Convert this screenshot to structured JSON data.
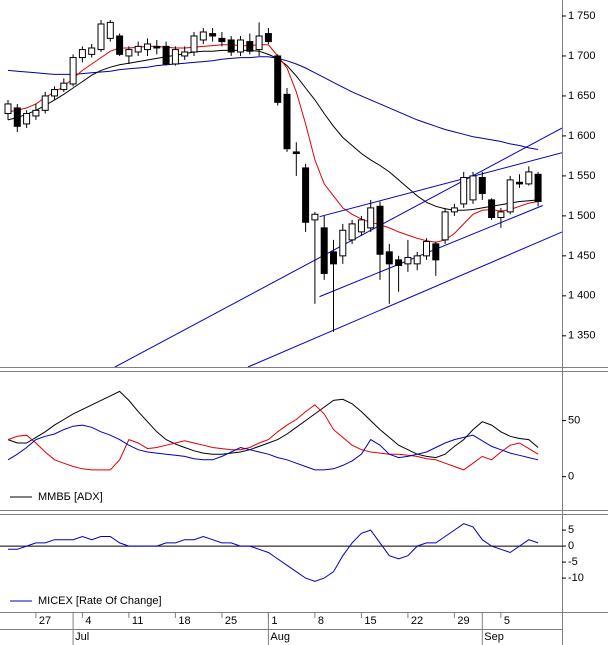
{
  "chart_data": [
    {
      "type": "candlestick",
      "open": [
        1628,
        1635,
        1615,
        1625,
        1632,
        1650,
        1658,
        1665,
        1698,
        1702,
        1708,
        1722,
        1725,
        1700,
        1705,
        1708,
        1712,
        1712,
        1690,
        1700,
        1705,
        1720,
        1728,
        1722,
        1720,
        1705,
        1718,
        1708,
        1728,
        1700,
        1652,
        1580,
        1560,
        1495,
        1485,
        1455,
        1450,
        1470,
        1480,
        1485,
        1512,
        1455,
        1445,
        1440,
        1440,
        1450,
        1465,
        1470,
        1505,
        1515,
        1520,
        1548,
        1520,
        1498,
        1505,
        1542,
        1540,
        1552
      ],
      "high": [
        1645,
        1640,
        1632,
        1640,
        1655,
        1662,
        1672,
        1702,
        1712,
        1715,
        1745,
        1745,
        1728,
        1712,
        1718,
        1722,
        1720,
        1718,
        1712,
        1712,
        1730,
        1735,
        1735,
        1730,
        1725,
        1725,
        1728,
        1742,
        1735,
        1702,
        1660,
        1592,
        1565,
        1505,
        1500,
        1470,
        1490,
        1495,
        1500,
        1520,
        1518,
        1465,
        1450,
        1470,
        1455,
        1472,
        1468,
        1510,
        1515,
        1555,
        1555,
        1555,
        1522,
        1510,
        1550,
        1552,
        1562,
        1555
      ],
      "low": [
        1620,
        1605,
        1610,
        1620,
        1628,
        1645,
        1655,
        1662,
        1692,
        1698,
        1705,
        1718,
        1700,
        1690,
        1700,
        1700,
        1702,
        1688,
        1688,
        1695,
        1700,
        1715,
        1718,
        1712,
        1700,
        1700,
        1702,
        1700,
        1715,
        1638,
        1580,
        1550,
        1480,
        1390,
        1420,
        1355,
        1440,
        1465,
        1475,
        1480,
        1420,
        1390,
        1405,
        1430,
        1432,
        1445,
        1425,
        1465,
        1500,
        1510,
        1515,
        1520,
        1495,
        1485,
        1502,
        1535,
        1538,
        1512
      ],
      "close": [
        1640,
        1612,
        1628,
        1632,
        1650,
        1658,
        1666,
        1698,
        1708,
        1710,
        1740,
        1742,
        1702,
        1708,
        1712,
        1715,
        1710,
        1690,
        1708,
        1705,
        1725,
        1730,
        1725,
        1718,
        1705,
        1720,
        1706,
        1725,
        1718,
        1642,
        1584,
        1578,
        1492,
        1502,
        1428,
        1440,
        1482,
        1490,
        1495,
        1510,
        1452,
        1440,
        1438,
        1448,
        1450,
        1468,
        1445,
        1505,
        1510,
        1548,
        1550,
        1528,
        1498,
        1505,
        1545,
        1540,
        1555,
        1518
      ],
      "series": [
        {
          "color": "#0000a0",
          "values": [
            1682,
            1681,
            1680,
            1679,
            1678,
            1677,
            1677,
            1677,
            1678,
            1679,
            1680,
            1681,
            1683,
            1684,
            1685,
            1686,
            1688,
            1689,
            1690,
            1691,
            1692,
            1693,
            1694,
            1696,
            1697,
            1698,
            1698,
            1699,
            1699,
            1697,
            1694,
            1690,
            1685,
            1679,
            1673,
            1667,
            1661,
            1655,
            1650,
            1645,
            1640,
            1635,
            1630,
            1625,
            1620,
            1616,
            1612,
            1608,
            1605,
            1602,
            1599,
            1597,
            1595,
            1593,
            1590,
            1588,
            1585,
            1583
          ]
        },
        {
          "color": "#000000",
          "values": [
            1620,
            1623,
            1627,
            1632,
            1638,
            1645,
            1652,
            1660,
            1668,
            1676,
            1682,
            1686,
            1689,
            1691,
            1693,
            1695,
            1697,
            1699,
            1701,
            1703,
            1705,
            1706,
            1706,
            1707,
            1707,
            1707,
            1707,
            1706,
            1702,
            1697,
            1688,
            1675,
            1660,
            1645,
            1628,
            1612,
            1598,
            1588,
            1578,
            1570,
            1563,
            1555,
            1545,
            1535,
            1525,
            1517,
            1512,
            1509,
            1507,
            1507,
            1508,
            1510,
            1512,
            1514,
            1516,
            1518,
            1519,
            1520
          ]
        },
        {
          "color": "#e00000",
          "values": [
            1630,
            1632,
            1635,
            1640,
            1648,
            1655,
            1662,
            1672,
            1682,
            1690,
            1698,
            1706,
            1710,
            1710,
            1711,
            1712,
            1712,
            1711,
            1710,
            1710,
            1711,
            1712,
            1713,
            1714,
            1714,
            1713,
            1713,
            1714,
            1714,
            1700,
            1685,
            1655,
            1615,
            1570,
            1540,
            1525,
            1510,
            1502,
            1496,
            1492,
            1489,
            1485,
            1480,
            1476,
            1472,
            1469,
            1467,
            1470,
            1478,
            1490,
            1502,
            1507,
            1508,
            1506,
            1508,
            1512,
            1516,
            1518
          ]
        }
      ],
      "trendlines": [
        {
          "color": "#0000c0",
          "x": [
            11.5,
            59.6
          ],
          "y": [
            1311,
            1610
          ]
        },
        {
          "color": "#0000c0",
          "x": [
            25.8,
            59.6
          ],
          "y": [
            1311,
            1480
          ]
        },
        {
          "color": "#0000c0",
          "x": [
            33.5,
            59.6
          ],
          "y": [
            1499,
            1579
          ]
        },
        {
          "color": "#0000c0",
          "x": [
            33.5,
            57.5
          ],
          "y": [
            1399,
            1513
          ]
        }
      ],
      "ylim": [
        1311,
        1770
      ],
      "yticks": [
        {
          "value": 1350,
          "label": "1 350"
        },
        {
          "value": 1400,
          "label": "1 400"
        },
        {
          "value": 1450,
          "label": "1 450"
        },
        {
          "value": 1500,
          "label": "1 500"
        },
        {
          "value": 1550,
          "label": "1 550"
        },
        {
          "value": 1600,
          "label": "1 600"
        },
        {
          "value": 1650,
          "label": "1 650"
        },
        {
          "value": 1700,
          "label": "1 700"
        },
        {
          "value": 1750,
          "label": "1 750"
        }
      ]
    },
    {
      "type": "line",
      "legend": "ММВБ [ADX]",
      "legend_color": "#000000",
      "series": [
        {
          "color": "#000000",
          "values": [
            33,
            30,
            30,
            35,
            40,
            46,
            51,
            56,
            60,
            64,
            68,
            72,
            76,
            68,
            58,
            49,
            40,
            33,
            29,
            26,
            23,
            21,
            20,
            20,
            21,
            22,
            24,
            27,
            30,
            33,
            38,
            44,
            50,
            56,
            62,
            68,
            69,
            65,
            58,
            50,
            42,
            35,
            28,
            24,
            20,
            18,
            17,
            20,
            27,
            33,
            42,
            49,
            46,
            40,
            36,
            34,
            33,
            26
          ]
        },
        {
          "color": "#e00000",
          "values": [
            33,
            36,
            37,
            30,
            22,
            15,
            12,
            9,
            7,
            6,
            6,
            6,
            15,
            33,
            30,
            25,
            26,
            28,
            30,
            32,
            30,
            28,
            26,
            25,
            24,
            24,
            26,
            30,
            33,
            40,
            46,
            51,
            58,
            64,
            56,
            42,
            35,
            28,
            24,
            22,
            21,
            20,
            20,
            19,
            18,
            16,
            15,
            12,
            9,
            6,
            12,
            18,
            15,
            22,
            28,
            30,
            25,
            20
          ]
        },
        {
          "color": "#0000c0",
          "values": [
            15,
            20,
            26,
            33,
            36,
            38,
            42,
            45,
            46,
            44,
            40,
            37,
            33,
            28,
            24,
            22,
            21,
            20,
            19,
            18,
            16,
            15,
            15,
            18,
            22,
            26,
            24,
            22,
            20,
            17,
            15,
            12,
            9,
            6,
            6,
            7,
            10,
            14,
            20,
            33,
            28,
            20,
            17,
            18,
            20,
            22,
            26,
            30,
            33,
            35,
            37,
            32,
            27,
            24,
            21,
            19,
            17,
            15
          ]
        }
      ],
      "ylim": [
        -28,
        88
      ],
      "yticks": [
        0,
        50
      ]
    },
    {
      "type": "line",
      "legend": "MICEX [Rate Of Change]",
      "legend_color": "#0000c0",
      "zero_line": true,
      "series": [
        {
          "color": "#0000c0",
          "values": [
            -1,
            -1,
            0,
            1,
            1,
            2,
            2,
            2,
            3,
            2,
            3,
            3,
            1,
            0,
            0,
            0,
            0,
            1,
            1,
            2,
            2,
            3,
            2,
            1,
            1,
            0,
            0,
            -1,
            -2,
            -4,
            -6,
            -8,
            -10,
            -11,
            -10,
            -8,
            -3,
            1,
            4,
            5,
            1,
            -3,
            -4,
            -3,
            0,
            1,
            1,
            3,
            5,
            7,
            6,
            2,
            0,
            -1,
            -2,
            0,
            2,
            1
          ]
        }
      ],
      "ylim": [
        -20.6,
        9.4
      ],
      "yticks": [
        -10,
        -5,
        0,
        5
      ],
      "categories": [
        null,
        null,
        null,
        "27",
        null,
        null,
        null,
        null,
        "4",
        null,
        null,
        null,
        null,
        "11",
        null,
        null,
        null,
        null,
        "18",
        null,
        null,
        null,
        null,
        "25",
        null,
        null,
        null,
        null,
        "1",
        null,
        null,
        null,
        null,
        "8",
        null,
        null,
        null,
        null,
        "15",
        null,
        null,
        null,
        null,
        "22",
        null,
        null,
        null,
        null,
        "29",
        null,
        null,
        null,
        null,
        "5",
        null,
        null,
        null,
        null
      ],
      "month_categories": [
        null,
        null,
        null,
        null,
        null,
        null,
        null,
        "Jul",
        null,
        null,
        null,
        null,
        null,
        null,
        null,
        null,
        null,
        null,
        null,
        null,
        null,
        null,
        null,
        null,
        null,
        null,
        null,
        null,
        "Aug",
        null,
        null,
        null,
        null,
        null,
        null,
        null,
        null,
        null,
        null,
        null,
        null,
        null,
        null,
        null,
        null,
        null,
        null,
        null,
        null,
        null,
        null,
        "Sep",
        null,
        null,
        null,
        null,
        null,
        null
      ]
    }
  ]
}
